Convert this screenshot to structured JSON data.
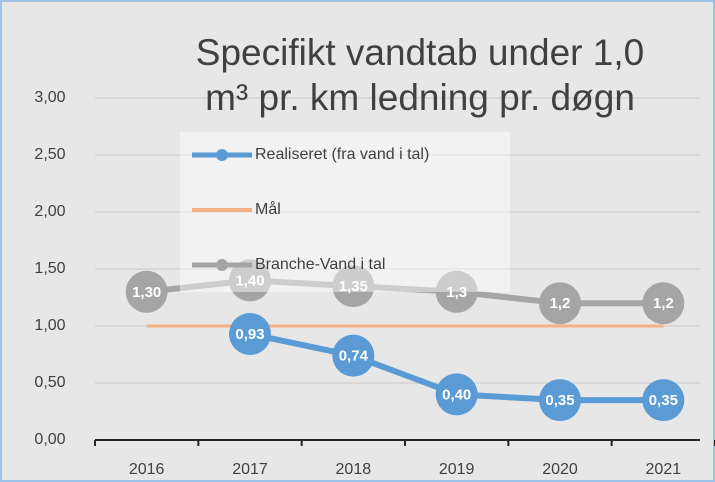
{
  "chart_data": {
    "type": "line",
    "title": [
      "Specifikt vandtab under 1,0",
      "m³ pr. km ledning pr. døgn"
    ],
    "categories": [
      "2016",
      "2017",
      "2018",
      "2019",
      "2020",
      "2021"
    ],
    "series": [
      {
        "name": "Realiseret (fra vand i tal)",
        "color": "#5b9bd5",
        "marker": true,
        "values": [
          null,
          0.93,
          0.74,
          0.4,
          0.35,
          0.35
        ],
        "value_labels": [
          null,
          "0,93",
          "0,74",
          "0,40",
          "0,35",
          "0,35"
        ]
      },
      {
        "name": "Mål",
        "color": "#f4b183",
        "marker": false,
        "values": [
          1.0,
          1.0,
          1.0,
          1.0,
          1.0,
          1.0
        ]
      },
      {
        "name": "Branche-Vand i tal",
        "color": "#a5a5a5",
        "marker": true,
        "values": [
          1.3,
          1.4,
          1.35,
          1.3,
          1.2,
          1.2
        ],
        "value_labels": [
          "1,30",
          "1,40",
          "1,35",
          "1,3",
          "1,2",
          "1,2"
        ]
      }
    ],
    "ylim": [
      0,
      3
    ],
    "yticks": [
      {
        "value": 0,
        "label": "0,00"
      },
      {
        "value": 0.5,
        "label": "0,50"
      },
      {
        "value": 1,
        "label": "1,00"
      },
      {
        "value": 1.5,
        "label": "1,50"
      },
      {
        "value": 2,
        "label": "2,00"
      },
      {
        "value": 2.5,
        "label": "2,50"
      },
      {
        "value": 3,
        "label": "3,00"
      }
    ],
    "grid": true
  }
}
